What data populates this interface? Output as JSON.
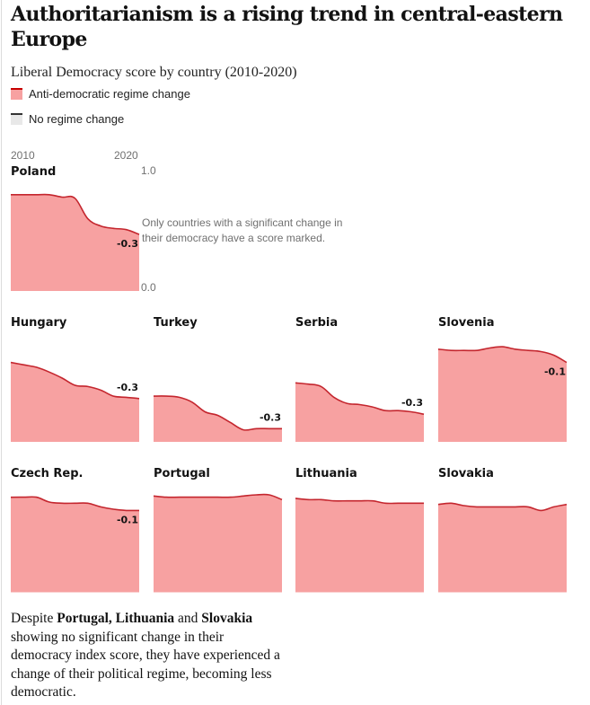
{
  "header": {
    "title": "Authoritarianism is a rising trend in central-eastern Europe",
    "subtitle": "Liberal Democracy score by country (2010-2020)"
  },
  "legend": [
    {
      "label": "Anti-democratic regime change",
      "fill": "#f7a1a1",
      "stroke": "#c70000"
    },
    {
      "label": "No regime change",
      "fill": "#e8e8e8",
      "stroke": "#333333"
    }
  ],
  "axis": {
    "x_start": "2010",
    "x_end": "2020",
    "y_top": "1.0",
    "y_bottom": "0.0"
  },
  "note": "Only countries with a significant change in their democracy have a score marked.",
  "colors": {
    "area_fill": "#f7a1a1",
    "line": "#c4262e",
    "text": "#121212",
    "muted": "#707070"
  },
  "chart_data": {
    "type": "area",
    "title": "Liberal Democracy score by country (2010-2020)",
    "xlabel": "",
    "ylabel": "Liberal Democracy score",
    "x": [
      2010,
      2011,
      2012,
      2013,
      2014,
      2015,
      2016,
      2017,
      2018,
      2019,
      2020
    ],
    "ylim": [
      0,
      1
    ],
    "grid": false,
    "legend_position": "top-left",
    "series": [
      {
        "name": "Poland",
        "category": "Anti-democratic regime change",
        "change_label": "-0.3",
        "values": [
          0.8,
          0.8,
          0.8,
          0.8,
          0.78,
          0.77,
          0.6,
          0.54,
          0.52,
          0.51,
          0.47
        ]
      },
      {
        "name": "Hungary",
        "category": "Anti-democratic regime change",
        "change_label": "-0.3",
        "values": [
          0.66,
          0.64,
          0.62,
          0.58,
          0.53,
          0.47,
          0.46,
          0.43,
          0.38,
          0.37,
          0.36
        ]
      },
      {
        "name": "Turkey",
        "category": "Anti-democratic regime change",
        "change_label": "-0.3",
        "values": [
          0.38,
          0.38,
          0.37,
          0.33,
          0.25,
          0.22,
          0.16,
          0.1,
          0.11,
          0.11,
          0.11
        ]
      },
      {
        "name": "Serbia",
        "category": "Anti-democratic regime change",
        "change_label": "-0.3",
        "values": [
          0.49,
          0.48,
          0.46,
          0.37,
          0.32,
          0.31,
          0.29,
          0.26,
          0.26,
          0.25,
          0.23
        ]
      },
      {
        "name": "Slovenia",
        "category": "Anti-democratic regime change",
        "change_label": "-0.1",
        "values": [
          0.77,
          0.76,
          0.76,
          0.76,
          0.78,
          0.79,
          0.77,
          0.76,
          0.75,
          0.72,
          0.66
        ]
      },
      {
        "name": "Czech Rep.",
        "category": "Anti-democratic regime change",
        "change_label": "-0.1",
        "values": [
          0.79,
          0.79,
          0.79,
          0.75,
          0.74,
          0.74,
          0.74,
          0.71,
          0.69,
          0.68,
          0.68
        ]
      },
      {
        "name": "Portugal",
        "category": "Anti-democratic regime change",
        "change_label": "",
        "values": [
          0.8,
          0.79,
          0.79,
          0.79,
          0.79,
          0.79,
          0.79,
          0.8,
          0.81,
          0.81,
          0.77
        ]
      },
      {
        "name": "Lithuania",
        "category": "Anti-democratic regime change",
        "change_label": "",
        "values": [
          0.78,
          0.77,
          0.77,
          0.76,
          0.76,
          0.76,
          0.76,
          0.74,
          0.74,
          0.74,
          0.74
        ]
      },
      {
        "name": "Slovakia",
        "category": "Anti-democratic regime change",
        "change_label": "",
        "values": [
          0.73,
          0.74,
          0.72,
          0.71,
          0.71,
          0.71,
          0.71,
          0.71,
          0.68,
          0.71,
          0.73
        ]
      }
    ]
  },
  "footnote": {
    "prefix": "Despite ",
    "bold1": "Portugal, Lithuania",
    "mid": " and ",
    "bold2": "Slovakia",
    "rest": " showing no significant change in their democracy index score, they have experienced a change of their political regime, becoming less democratic."
  }
}
